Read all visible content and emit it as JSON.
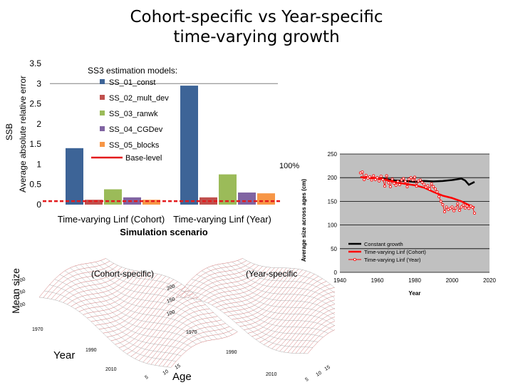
{
  "slide": {
    "title": "Cohort-specific vs Year-specific\ntime-varying growth",
    "ssb_label": "SSB",
    "mean_size_label": "Mean size",
    "note_cohort": "(Cohort-specific)",
    "note_year": "(Year-specific",
    "year_label": "Year",
    "age_label": "Age",
    "surface_year_ticks": [
      "1970",
      "1990",
      "2010"
    ],
    "surface_size_ticks": [
      "200",
      "150",
      "100"
    ],
    "surface_age_ticks": [
      "5",
      "10",
      "15"
    ]
  },
  "colors": {
    "blue": "#3d6497",
    "red": "#c0504d",
    "green": "#9bbb59",
    "purple": "#8064a2",
    "orange": "#f79646",
    "base": "#e31a1c",
    "plot_bg": "#c0c0c0",
    "black": "#000000",
    "line_red": "#ff0000"
  },
  "chart_data": [
    {
      "type": "bar",
      "legend_title": "SS3 estimation models:",
      "ylabel": "Average absolute relative error",
      "xlabel": "Simulation scenario",
      "categories": [
        "Time-varying Linf (Cohort)",
        "Time-varying Linf (Year)"
      ],
      "ylim": [
        0,
        3.5
      ],
      "yticks": [
        "0",
        "0.5",
        "1",
        "1.5",
        "2",
        "2.5",
        "3",
        "3.5"
      ],
      "series": [
        {
          "name": "SS_01_const",
          "values": [
            1.4,
            2.95
          ]
        },
        {
          "name": "SS_02_mult_dev",
          "values": [
            0.12,
            0.18
          ]
        },
        {
          "name": "SS_03_ranwk",
          "values": [
            0.38,
            0.75
          ]
        },
        {
          "name": "SS_04_CGDev",
          "values": [
            0.18,
            0.3
          ]
        },
        {
          "name": "SS_05_blocks",
          "values": [
            0.12,
            0.28
          ]
        }
      ],
      "reference_lines": [
        {
          "name": "Base-level",
          "value": 0.05
        }
      ],
      "annotation": "100%",
      "legend_position": "top-right"
    },
    {
      "type": "line",
      "xlabel": "Year",
      "ylabel": "Average size across ages (cm)",
      "xlim": [
        1940,
        2020
      ],
      "ylim": [
        0,
        250
      ],
      "xticks": [
        "1940",
        "1960",
        "1980",
        "2000",
        "2020"
      ],
      "yticks": [
        "0",
        "50",
        "100",
        "150",
        "200",
        "250"
      ],
      "grid": true,
      "legend_position": "bottom-right",
      "series": [
        {
          "name": "Constant growth",
          "x": [
            1951,
            1955,
            1960,
            1965,
            1970,
            1975,
            1980,
            1985,
            1990,
            1995,
            2000,
            2005,
            2007,
            2009,
            2012
          ],
          "y": [
            201,
            200,
            199,
            197,
            194,
            193,
            191,
            193,
            192,
            193,
            195,
            198,
            194,
            185,
            191
          ]
        },
        {
          "name": "Time-varying Linf (Cohort)",
          "x": [
            1951,
            1955,
            1960,
            1965,
            1970,
            1975,
            1980,
            1985,
            1990,
            1995,
            2000,
            2005,
            2010,
            2012
          ],
          "y": [
            201,
            200,
            199,
            195,
            190,
            187,
            184,
            179,
            170,
            162,
            157,
            150,
            140,
            137
          ]
        },
        {
          "name": "Time-varying Linf (Year)",
          "x": [
            1951,
            1952,
            1953,
            1954,
            1955,
            1956,
            1957,
            1958,
            1959,
            1960,
            1961,
            1962,
            1963,
            1964,
            1965,
            1966,
            1967,
            1968,
            1969,
            1970,
            1971,
            1972,
            1973,
            1974,
            1975,
            1976,
            1977,
            1978,
            1979,
            1980,
            1981,
            1982,
            1983,
            1984,
            1985,
            1986,
            1987,
            1988,
            1989,
            1990,
            1991,
            1992,
            1993,
            1994,
            1995,
            1996,
            1997,
            1998,
            1999,
            2000,
            2001,
            2002,
            2003,
            2004,
            2005,
            2006,
            2007,
            2008,
            2009,
            2010,
            2011,
            2012
          ],
          "y": [
            210,
            212,
            196,
            205,
            199,
            202,
            195,
            204,
            196,
            200,
            193,
            203,
            196,
            182,
            204,
            189,
            181,
            197,
            188,
            184,
            192,
            185,
            195,
            198,
            192,
            181,
            197,
            200,
            195,
            201,
            182,
            193,
            195,
            190,
            186,
            180,
            183,
            176,
            187,
            181,
            176,
            170,
            160,
            150,
            143,
            128,
            138,
            133,
            135,
            138,
            130,
            136,
            145,
            131,
            138,
            142,
            136,
            140,
            135,
            140,
            137,
            125
          ]
        }
      ]
    }
  ]
}
